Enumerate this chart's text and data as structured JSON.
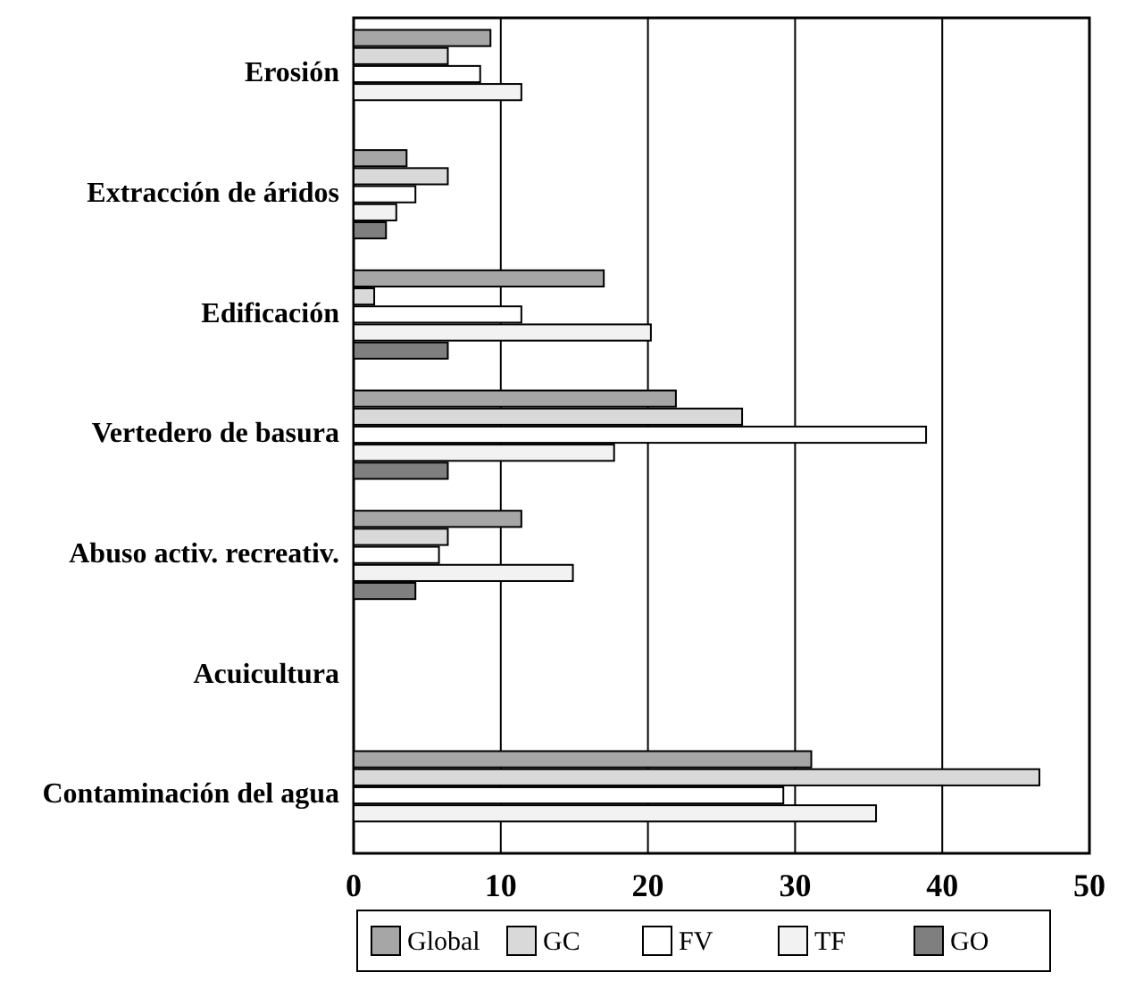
{
  "chart_data": {
    "type": "bar",
    "orientation": "horizontal",
    "categories": [
      "Erosión",
      "Extracción de áridos",
      "Edificación",
      "Vertedero de basura",
      "Abuso activ. recreativ.",
      "Acuicultura",
      "Contaminación del agua"
    ],
    "series": [
      {
        "name": "Global",
        "color": "#a6a6a6",
        "values": [
          9.3,
          3.6,
          17.0,
          21.9,
          11.4,
          0,
          31.1
        ]
      },
      {
        "name": "GC",
        "color": "#d9d9d9",
        "values": [
          6.4,
          6.4,
          1.4,
          26.4,
          6.4,
          0,
          46.6
        ]
      },
      {
        "name": "FV",
        "color": "#ffffff",
        "values": [
          8.6,
          4.2,
          11.4,
          38.9,
          5.8,
          0,
          29.2
        ]
      },
      {
        "name": "TF",
        "color": "#f2f2f2",
        "values": [
          11.4,
          2.9,
          20.2,
          17.7,
          14.9,
          0,
          35.5
        ]
      },
      {
        "name": "GO",
        "color": "#7f7f7f",
        "values": [
          0,
          2.2,
          6.4,
          6.4,
          4.2,
          0,
          0
        ]
      }
    ],
    "xlim": [
      0,
      50
    ],
    "xticks": [
      0,
      10,
      20,
      30,
      40,
      50
    ],
    "grid": "x",
    "legend": "bottom"
  }
}
